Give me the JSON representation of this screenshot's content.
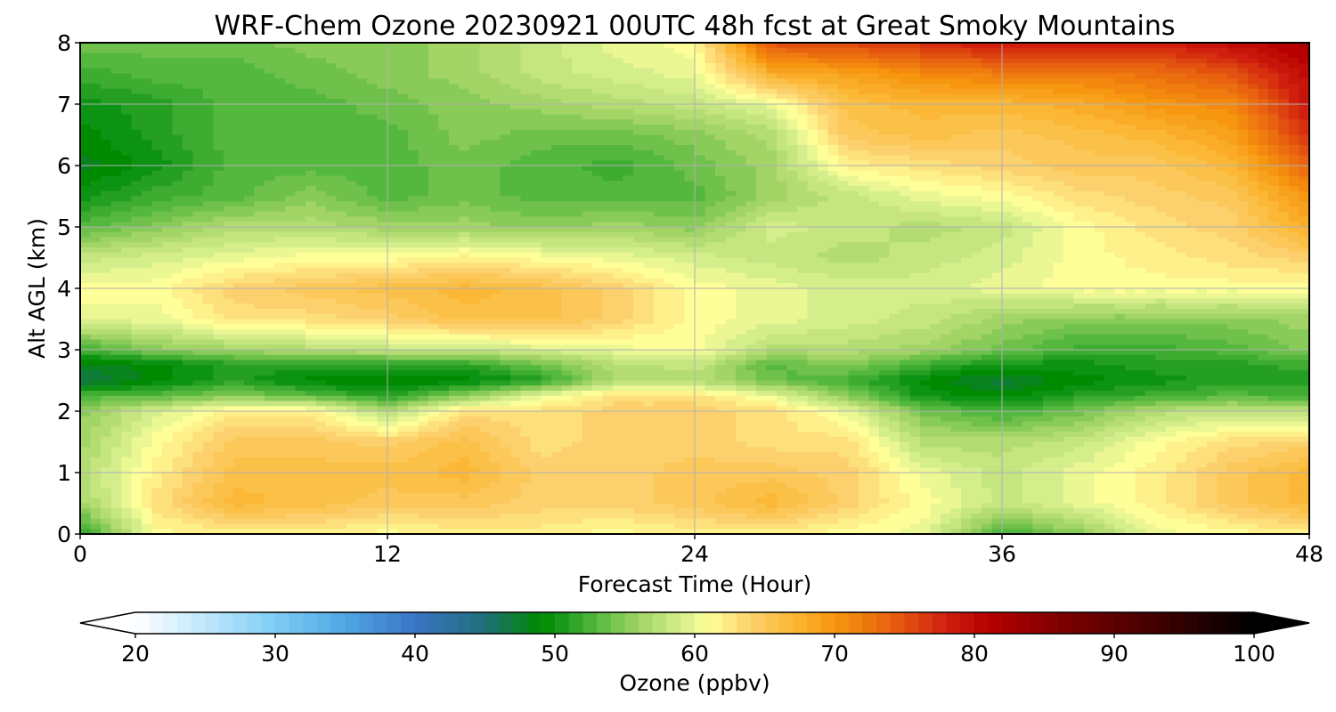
{
  "chart_data": {
    "type": "heatmap",
    "title": "WRF-Chem Ozone  20230921 00UTC 48h fcst at Great Smoky Mountains",
    "xlabel": "Forecast Time (Hour)",
    "ylabel": "Alt AGL (km)",
    "xlim": [
      0,
      48
    ],
    "ylim": [
      0,
      8
    ],
    "x_ticks": [
      "0",
      "12",
      "24",
      "36",
      "48"
    ],
    "y_ticks": [
      "0",
      "1",
      "2",
      "3",
      "4",
      "5",
      "6",
      "7",
      "8"
    ],
    "grid": true,
    "x": [
      0,
      3,
      6,
      9,
      12,
      15,
      18,
      21,
      24,
      27,
      30,
      33,
      36,
      39,
      42,
      45,
      48
    ],
    "y": [
      0,
      0.5,
      1,
      1.5,
      2,
      2.25,
      2.5,
      2.75,
      3,
      3.5,
      4,
      4.5,
      5,
      5.5,
      6,
      6.5,
      7,
      7.5,
      8
    ],
    "z": [
      [
        51,
        61,
        62,
        62,
        61,
        62,
        62,
        61,
        62,
        62,
        61,
        60,
        52,
        55,
        60,
        61,
        62
      ],
      [
        56,
        63,
        67,
        66,
        65,
        65,
        64,
        64,
        65,
        67,
        64,
        61,
        58,
        60,
        62,
        65,
        67
      ],
      [
        57,
        62,
        66,
        66,
        66,
        67,
        64,
        64,
        65,
        65,
        64,
        60,
        58,
        60,
        62,
        65,
        67
      ],
      [
        56,
        61,
        65,
        65,
        64,
        66,
        63,
        64,
        64,
        63,
        63,
        57,
        57,
        58,
        61,
        63,
        64
      ],
      [
        55,
        59,
        62,
        62,
        57,
        63,
        63,
        64,
        64,
        63,
        60,
        54,
        52,
        54,
        57,
        58,
        58
      ],
      [
        53,
        53,
        55,
        53,
        51,
        55,
        60,
        63,
        63,
        60,
        55,
        50,
        49,
        51,
        52,
        53,
        52
      ],
      [
        46,
        49,
        51,
        49,
        48,
        49,
        51,
        57,
        57,
        54,
        52,
        49,
        47,
        49,
        50,
        51,
        51
      ],
      [
        48,
        49,
        51,
        51,
        51,
        51,
        54,
        57,
        58,
        53,
        55,
        52,
        50,
        50,
        51,
        51,
        52
      ],
      [
        52,
        55,
        56,
        57,
        58,
        58,
        59,
        60,
        61,
        57,
        57,
        56,
        54,
        52,
        52,
        53,
        55
      ],
      [
        60,
        60,
        63,
        63,
        64,
        66,
        66,
        64,
        61,
        60,
        59,
        58,
        56,
        55,
        55,
        55,
        56
      ],
      [
        61,
        61,
        64,
        65,
        66,
        67,
        66,
        64,
        61,
        60,
        59,
        59,
        60,
        61,
        61,
        61,
        61
      ],
      [
        58,
        59,
        60,
        61,
        61,
        62,
        61,
        60,
        59,
        58,
        57,
        58,
        59,
        61,
        62,
        63,
        64
      ],
      [
        53,
        55,
        57,
        57,
        56,
        56,
        55,
        56,
        55,
        59,
        58,
        57,
        58,
        61,
        63,
        64,
        68
      ],
      [
        50,
        52,
        53,
        55,
        53,
        54,
        53,
        53,
        53,
        56,
        58,
        60,
        61,
        63,
        64,
        65,
        70
      ],
      [
        48,
        50,
        53,
        53,
        53,
        54,
        53,
        52,
        54,
        56,
        62,
        63,
        64,
        65,
        65,
        67,
        74
      ],
      [
        49,
        51,
        53,
        53,
        53,
        55,
        54,
        54,
        55,
        57,
        65,
        66,
        65,
        66,
        67,
        69,
        77
      ],
      [
        50,
        51,
        53,
        53,
        54,
        55,
        56,
        57,
        58,
        60,
        66,
        67,
        67,
        68,
        70,
        71,
        79
      ],
      [
        52,
        53,
        53,
        54,
        55,
        56,
        58,
        59,
        60,
        68,
        69,
        71,
        72,
        72,
        73,
        75,
        80
      ],
      [
        54,
        54,
        54,
        55,
        55,
        56,
        58,
        60,
        61,
        75,
        76,
        77,
        79,
        79,
        78,
        80,
        82
      ]
    ],
    "colorbar": {
      "label": "Ozone  (ppbv)",
      "min": 20,
      "max": 100,
      "extend": "both",
      "ticks": [
        "20",
        "30",
        "40",
        "50",
        "60",
        "70",
        "80",
        "90",
        "100"
      ],
      "stops": [
        {
          "v": 20,
          "c": "#ffffff"
        },
        {
          "v": 25,
          "c": "#bfe6fa"
        },
        {
          "v": 30,
          "c": "#7fcdf5"
        },
        {
          "v": 35,
          "c": "#4fa6e2"
        },
        {
          "v": 40,
          "c": "#3a74c6"
        },
        {
          "v": 45,
          "c": "#1f6e78"
        },
        {
          "v": 49,
          "c": "#008a00"
        },
        {
          "v": 50,
          "c": "#0d9314"
        },
        {
          "v": 53,
          "c": "#55b83e"
        },
        {
          "v": 56,
          "c": "#a3d466"
        },
        {
          "v": 59,
          "c": "#d4ee8c"
        },
        {
          "v": 61,
          "c": "#ffff99"
        },
        {
          "v": 64,
          "c": "#fcd16d"
        },
        {
          "v": 67,
          "c": "#fbb735"
        },
        {
          "v": 70,
          "c": "#f7960f"
        },
        {
          "v": 74,
          "c": "#e8620f"
        },
        {
          "v": 78,
          "c": "#d01f0f"
        },
        {
          "v": 81,
          "c": "#b60000"
        },
        {
          "v": 86,
          "c": "#800000"
        },
        {
          "v": 92,
          "c": "#4a0000"
        },
        {
          "v": 100,
          "c": "#000000"
        }
      ]
    }
  }
}
